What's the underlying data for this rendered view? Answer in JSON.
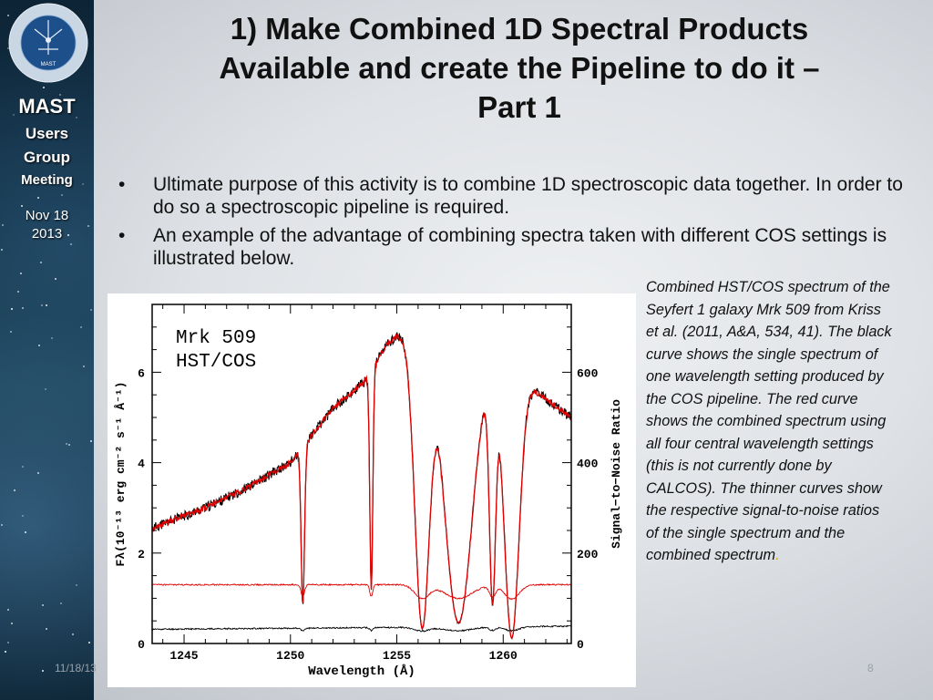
{
  "sidebar": {
    "logo_text": "MIKULSKI ARCHIVE FOR SPACE TELESCOPES",
    "logo_center": "MAST",
    "line1": "MAST",
    "line2": "Users",
    "line3": "Group",
    "line4": "Meeting",
    "date1": "Nov 18",
    "date2": "2013"
  },
  "slide": {
    "title_line1": "1) Make Combined 1D Spectral Products",
    "title_line2": "Available and create the Pipeline to do it –",
    "title_line3": "Part 1",
    "bullets": [
      "Ultimate purpose of this activity is to combine 1D spectroscopic data together. In order to do so a spectroscopic pipeline is required.",
      "An example of the advantage of combining spectra taken with different COS settings is illustrated below."
    ],
    "caption_main": "Combined HST/COS spectrum of the Seyfert 1 galaxy Mrk 509 from Kriss et al. (2011, A&A, 534, 41). The black curve shows the single spectrum of one wavelength setting produced by the COS pipeline. The red curve shows the combined spectrum using all four central wavelength settings (this is not currently done by CALCOS). The thinner curves show the respective signal-to-noise ratios of the single spectrum and the combined spectrum",
    "caption_end": ".",
    "footer_date": "11/18/13",
    "page_number": "8"
  },
  "colors": {
    "single": "#000000",
    "combined": "#e00000"
  },
  "chart_data": {
    "type": "line",
    "title": "",
    "annotation_line1": "Mrk 509",
    "annotation_line2": "HST/COS",
    "xlabel": "Wavelength (Å)",
    "ylabel_left": "Fλ(10⁻¹³ erg cm⁻² s⁻¹ Å⁻¹)",
    "ylabel_right": "Signal−to−Noise Ratio",
    "xlim": [
      1243.5,
      1263.2
    ],
    "ylim_left": [
      0,
      7.5
    ],
    "ylim_right": [
      0,
      750
    ],
    "x_ticks": [
      "1245",
      "1250",
      "1255",
      "1260"
    ],
    "y_left_ticks": [
      "0",
      "2",
      "4",
      "6"
    ],
    "y_right_ticks": [
      "0",
      "200",
      "400",
      "600"
    ],
    "flux_continuum": {
      "x": [
        1243.5,
        1246,
        1248,
        1250,
        1251,
        1252,
        1253,
        1253.5,
        1254.5,
        1255,
        1255.5,
        1256,
        1257,
        1257.5,
        1258,
        1259,
        1260,
        1261,
        1262,
        1263.2
      ],
      "y": [
        2.55,
        3.0,
        3.45,
        4.0,
        4.6,
        5.2,
        5.6,
        5.8,
        6.6,
        6.8,
        6.9,
        6.8,
        6.9,
        6.6,
        6.5,
        6.3,
        6.1,
        5.8,
        5.4,
        5.0
      ]
    },
    "absorption_lines": [
      {
        "x": 1250.58,
        "depth": 0.8,
        "width": 0.08
      },
      {
        "x": 1253.8,
        "depth": 0.8,
        "width": 0.07
      },
      {
        "x": 1256.2,
        "depth": 0.95,
        "width": 0.35
      },
      {
        "x": 1257.9,
        "depth": 0.93,
        "width": 0.65
      },
      {
        "x": 1259.5,
        "depth": 0.85,
        "width": 0.15
      },
      {
        "x": 1260.4,
        "depth": 0.98,
        "width": 0.35
      }
    ],
    "series": [
      {
        "name": "",
        "role": "single spectrum flux",
        "color": "#000000",
        "sn_level": 35
      },
      {
        "name": "",
        "role": "combined spectrum flux",
        "color": "#e00000",
        "sn_level": 130
      }
    ]
  }
}
